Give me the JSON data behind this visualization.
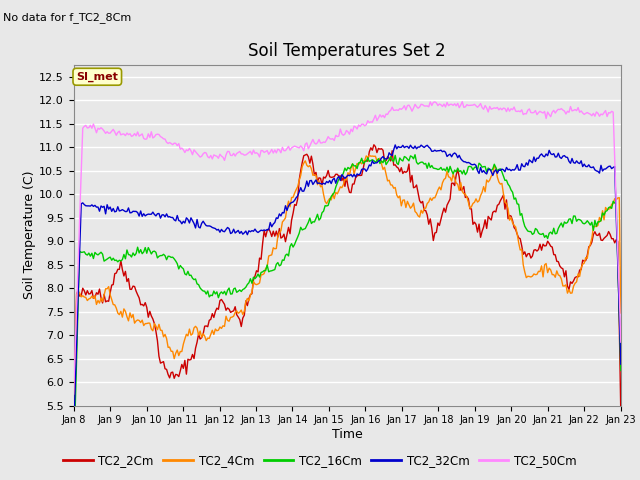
{
  "title": "Soil Temperatures Set 2",
  "top_left_text": "No data for f_TC2_8Cm",
  "ylabel": "Soil Temperature (C)",
  "xlabel": "Time",
  "legend_label": "SI_met",
  "ylim": [
    5.5,
    12.75
  ],
  "yticks": [
    5.5,
    6.0,
    6.5,
    7.0,
    7.5,
    8.0,
    8.5,
    9.0,
    9.5,
    10.0,
    10.5,
    11.0,
    11.5,
    12.0,
    12.5
  ],
  "xtick_labels": [
    "Jan 8",
    "Jan 9",
    "Jan 10",
    "Jan 11",
    "Jan 12",
    "Jan 13",
    "Jan 14",
    "Jan 15",
    "Jan 16",
    "Jan 17",
    "Jan 18",
    "Jan 19",
    "Jan 20",
    "Jan 21",
    "Jan 22",
    "Jan 23"
  ],
  "colors": {
    "TC2_2Cm": "#cc0000",
    "TC2_4Cm": "#ff8800",
    "TC2_16Cm": "#00cc00",
    "TC2_32Cm": "#0000cc",
    "TC2_50Cm": "#ff88ff"
  },
  "legend_entries": [
    "TC2_2Cm",
    "TC2_4Cm",
    "TC2_16Cm",
    "TC2_32Cm",
    "TC2_50Cm"
  ],
  "background_color": "#e8e8e8",
  "plot_background": "#e8e8e8",
  "grid_color": "#ffffff",
  "title_fontsize": 12,
  "axis_fontsize": 9,
  "tick_fontsize": 8
}
